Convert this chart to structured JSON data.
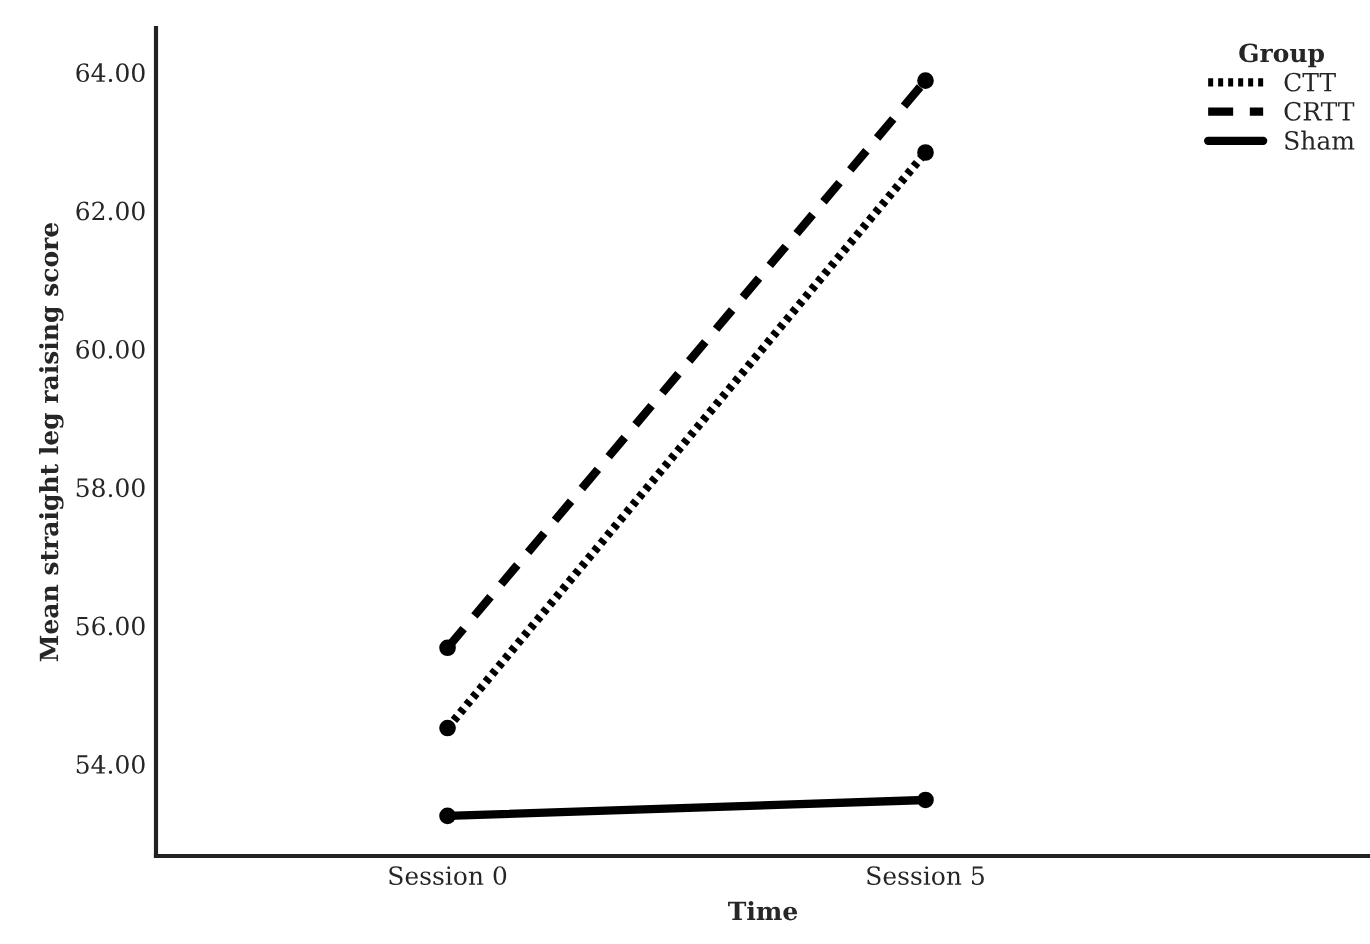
{
  "chart_data": {
    "type": "line",
    "xlabel": "Time",
    "ylabel": "Mean straight leg raising score",
    "legend_title": "Group",
    "categories": [
      "Session 0",
      "Session 5"
    ],
    "series": [
      {
        "name": "CTT",
        "color": "#000000",
        "values": [
          54.52,
          62.84
        ],
        "line_style": "dotted"
      },
      {
        "name": "CRTT",
        "color": "#000000",
        "values": [
          55.68,
          63.88
        ],
        "line_style": "dashed"
      },
      {
        "name": "Sham",
        "color": "#000000",
        "values": [
          53.25,
          53.48
        ],
        "line_style": "solid"
      }
    ],
    "ylim": [
      52.67,
      64.64
    ],
    "yticks": [
      {
        "value": 54,
        "label": "54.00"
      },
      {
        "value": 56,
        "label": "56.00"
      },
      {
        "value": 58,
        "label": "58.00"
      },
      {
        "value": 60,
        "label": "60.00"
      },
      {
        "value": 62,
        "label": "62.00"
      },
      {
        "value": 64,
        "label": "64.00"
      }
    ],
    "marker": "circle",
    "grid": false,
    "legend": "top right"
  }
}
